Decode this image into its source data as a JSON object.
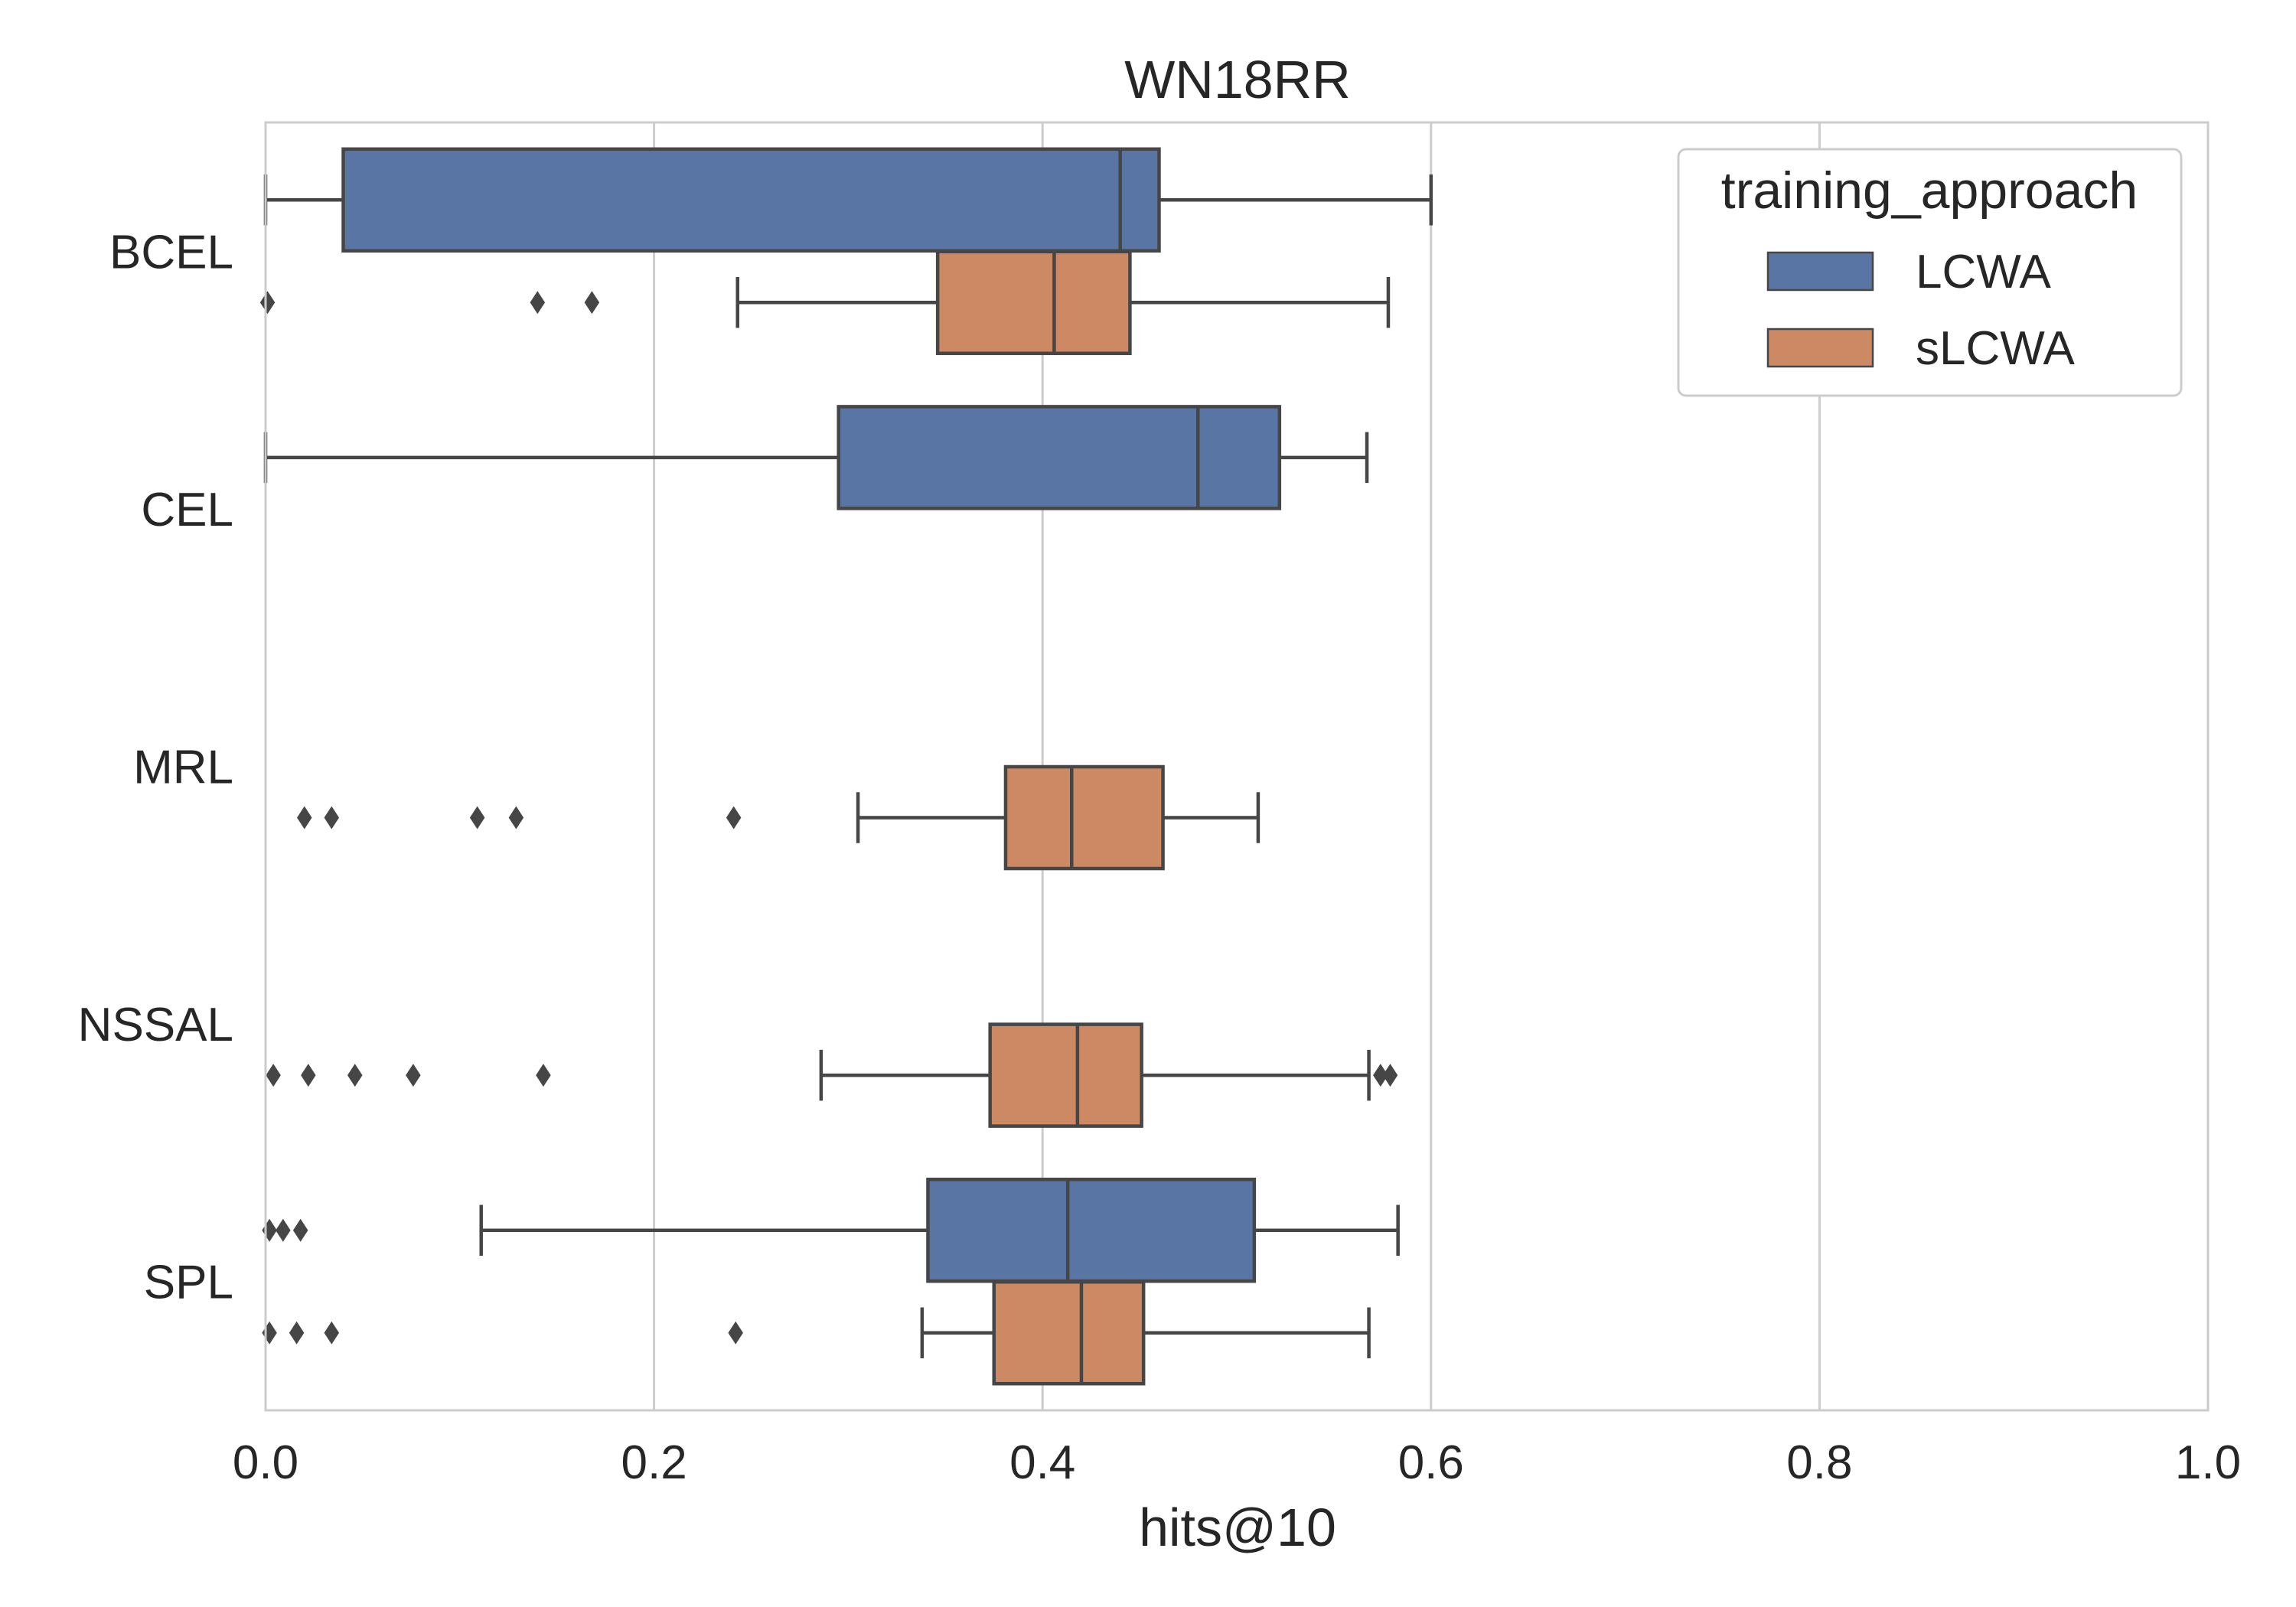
{
  "chart_data": {
    "type": "boxplot",
    "orientation": "horizontal",
    "title": "WN18RR",
    "xlabel": "hits@10",
    "ylabel": "",
    "xlim": [
      0.0,
      1.0
    ],
    "xticks": [
      "0.0",
      "0.2",
      "0.4",
      "0.6",
      "0.8",
      "1.0"
    ],
    "grid": "vertical",
    "categories": [
      "BCEL",
      "CEL",
      "MRL",
      "NSSAL",
      "SPL"
    ],
    "legend": {
      "title": "training_approach",
      "position": "top-right",
      "entries": [
        "LCWA",
        "sLCWA"
      ]
    },
    "colors": {
      "LCWA": "#5875a4",
      "sLCWA": "#cc8963",
      "line": "#464646",
      "grid": "#cccccc",
      "frame": "#cccccc"
    },
    "series": [
      {
        "name": "LCWA",
        "boxes": [
          {
            "category": "BCEL",
            "whisker_low": 0.0,
            "q1": 0.04,
            "median": 0.44,
            "q3": 0.46,
            "whisker_high": 0.6,
            "outliers": []
          },
          {
            "category": "CEL",
            "whisker_low": 0.0,
            "q1": 0.295,
            "median": 0.48,
            "q3": 0.522,
            "whisker_high": 0.567,
            "outliers": []
          },
          {
            "category": "SPL",
            "whisker_low": 0.111,
            "q1": 0.341,
            "median": 0.413,
            "q3": 0.509,
            "whisker_high": 0.583,
            "outliers": [
              0.002,
              0.009,
              0.018
            ]
          }
        ]
      },
      {
        "name": "sLCWA",
        "boxes": [
          {
            "category": "BCEL",
            "whisker_low": 0.243,
            "q1": 0.346,
            "median": 0.406,
            "q3": 0.445,
            "whisker_high": 0.578,
            "outliers": [
              0.001,
              0.14,
              0.168
            ]
          },
          {
            "category": "MRL",
            "whisker_low": 0.305,
            "q1": 0.381,
            "median": 0.415,
            "q3": 0.462,
            "whisker_high": 0.511,
            "outliers": [
              0.02,
              0.034,
              0.109,
              0.129,
              0.241
            ]
          },
          {
            "category": "NSSAL",
            "whisker_low": 0.286,
            "q1": 0.373,
            "median": 0.418,
            "q3": 0.451,
            "whisker_high": 0.568,
            "outliers": [
              0.004,
              0.022,
              0.046,
              0.076,
              0.143,
              0.574,
              0.579
            ]
          },
          {
            "category": "SPL",
            "whisker_low": 0.338,
            "q1": 0.375,
            "median": 0.42,
            "q3": 0.452,
            "whisker_high": 0.568,
            "outliers": [
              0.002,
              0.016,
              0.034,
              0.242
            ]
          }
        ]
      }
    ]
  }
}
